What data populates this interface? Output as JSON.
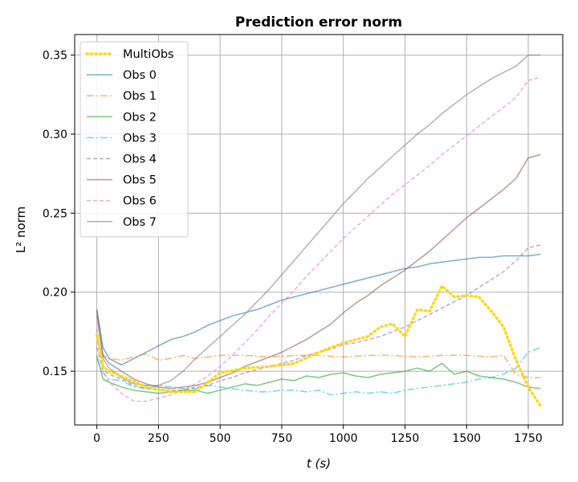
{
  "chart_data": {
    "type": "line",
    "title": "Prediction error norm",
    "xlabel": "t (s)",
    "ylabel": "L² norm",
    "xlim": [
      -90,
      1890
    ],
    "ylim": [
      0.116,
      0.363
    ],
    "xticks": [
      0,
      250,
      500,
      750,
      1000,
      1250,
      1500,
      1750
    ],
    "yticks": [
      0.15,
      0.2,
      0.25,
      0.3,
      0.35
    ],
    "ytick_labels": [
      "0.15",
      "0.20",
      "0.25",
      "0.30",
      "0.35"
    ],
    "grid": true,
    "legend_position": "top-left",
    "series": [
      {
        "name": "MultiObs",
        "color": "#ffd700",
        "dash": "1.5,4",
        "width": 3.2,
        "opacity": 1,
        "x": [
          0,
          25,
          50,
          100,
          200,
          300,
          400,
          500,
          600,
          700,
          800,
          900,
          1000,
          1050,
          1100,
          1150,
          1200,
          1250,
          1300,
          1350,
          1400,
          1450,
          1500,
          1550,
          1600,
          1650,
          1700,
          1750,
          1800
        ],
        "values": [
          0.173,
          0.153,
          0.15,
          0.147,
          0.14,
          0.137,
          0.137,
          0.149,
          0.152,
          0.153,
          0.155,
          0.162,
          0.168,
          0.17,
          0.172,
          0.178,
          0.18,
          0.172,
          0.189,
          0.188,
          0.204,
          0.197,
          0.198,
          0.197,
          0.188,
          0.178,
          0.157,
          0.14,
          0.128
        ]
      },
      {
        "name": "Obs 0",
        "color": "#1f77b4",
        "dash": "",
        "width": 1.5,
        "opacity": 0.6,
        "x": [
          0,
          25,
          50,
          100,
          150,
          200,
          250,
          300,
          350,
          400,
          450,
          500,
          550,
          600,
          650,
          700,
          750,
          800,
          850,
          900,
          950,
          1000,
          1050,
          1100,
          1150,
          1200,
          1250,
          1300,
          1350,
          1400,
          1450,
          1500,
          1550,
          1600,
          1650,
          1700,
          1750,
          1800
        ],
        "values": [
          0.189,
          0.165,
          0.158,
          0.154,
          0.158,
          0.162,
          0.166,
          0.17,
          0.172,
          0.175,
          0.179,
          0.182,
          0.185,
          0.187,
          0.189,
          0.192,
          0.195,
          0.197,
          0.199,
          0.201,
          0.203,
          0.205,
          0.207,
          0.209,
          0.211,
          0.213,
          0.215,
          0.216,
          0.218,
          0.219,
          0.22,
          0.221,
          0.222,
          0.222,
          0.223,
          0.223,
          0.223,
          0.224
        ]
      },
      {
        "name": "Obs 1",
        "color": "#ff7f0e",
        "dash": "9,3,2,3",
        "width": 1.5,
        "opacity": 0.6,
        "x": [
          0,
          25,
          50,
          100,
          150,
          200,
          250,
          300,
          350,
          400,
          450,
          500,
          600,
          700,
          800,
          900,
          1000,
          1100,
          1200,
          1300,
          1400,
          1500,
          1600,
          1650,
          1700,
          1750,
          1800
        ],
        "values": [
          0.17,
          0.16,
          0.158,
          0.157,
          0.159,
          0.161,
          0.157,
          0.158,
          0.16,
          0.158,
          0.159,
          0.16,
          0.16,
          0.159,
          0.16,
          0.16,
          0.159,
          0.16,
          0.16,
          0.159,
          0.16,
          0.16,
          0.159,
          0.16,
          0.148,
          0.146,
          0.146
        ]
      },
      {
        "name": "Obs 2",
        "color": "#2ca02c",
        "dash": "",
        "width": 1.5,
        "opacity": 0.6,
        "x": [
          0,
          25,
          50,
          100,
          150,
          200,
          250,
          300,
          350,
          400,
          450,
          500,
          550,
          600,
          650,
          700,
          750,
          800,
          850,
          900,
          950,
          1000,
          1050,
          1100,
          1150,
          1200,
          1250,
          1300,
          1350,
          1400,
          1450,
          1500,
          1550,
          1600,
          1650,
          1700,
          1750,
          1800
        ],
        "values": [
          0.16,
          0.145,
          0.143,
          0.14,
          0.138,
          0.137,
          0.136,
          0.137,
          0.138,
          0.138,
          0.136,
          0.138,
          0.14,
          0.142,
          0.141,
          0.143,
          0.145,
          0.144,
          0.147,
          0.146,
          0.148,
          0.149,
          0.147,
          0.146,
          0.148,
          0.149,
          0.15,
          0.152,
          0.15,
          0.155,
          0.148,
          0.15,
          0.147,
          0.146,
          0.145,
          0.143,
          0.14,
          0.139
        ]
      },
      {
        "name": "Obs 3",
        "color": "#17becf",
        "dash": "9,3,2,3",
        "width": 1.5,
        "opacity": 0.6,
        "x": [
          0,
          25,
          50,
          100,
          150,
          200,
          250,
          300,
          350,
          400,
          450,
          500,
          550,
          600,
          650,
          700,
          750,
          800,
          850,
          900,
          950,
          1000,
          1050,
          1100,
          1150,
          1200,
          1250,
          1300,
          1350,
          1400,
          1450,
          1500,
          1550,
          1600,
          1650,
          1700,
          1750,
          1800
        ],
        "values": [
          0.158,
          0.149,
          0.145,
          0.144,
          0.14,
          0.139,
          0.141,
          0.14,
          0.139,
          0.139,
          0.141,
          0.14,
          0.139,
          0.138,
          0.137,
          0.137,
          0.138,
          0.138,
          0.137,
          0.138,
          0.135,
          0.136,
          0.137,
          0.136,
          0.137,
          0.136,
          0.138,
          0.139,
          0.14,
          0.141,
          0.142,
          0.143,
          0.145,
          0.146,
          0.148,
          0.152,
          0.162,
          0.165
        ]
      },
      {
        "name": "Obs 4",
        "color": "#9467bd",
        "dash": "5,3",
        "width": 1.5,
        "opacity": 0.6,
        "x": [
          0,
          25,
          50,
          100,
          150,
          200,
          250,
          300,
          350,
          400,
          450,
          500,
          550,
          600,
          650,
          700,
          750,
          800,
          850,
          900,
          950,
          1000,
          1050,
          1100,
          1150,
          1200,
          1250,
          1300,
          1350,
          1400,
          1450,
          1500,
          1550,
          1600,
          1650,
          1700,
          1750,
          1800
        ],
        "values": [
          0.165,
          0.151,
          0.148,
          0.145,
          0.141,
          0.139,
          0.138,
          0.138,
          0.138,
          0.14,
          0.141,
          0.144,
          0.146,
          0.149,
          0.151,
          0.153,
          0.155,
          0.157,
          0.16,
          0.162,
          0.164,
          0.167,
          0.168,
          0.17,
          0.172,
          0.175,
          0.178,
          0.182,
          0.186,
          0.19,
          0.194,
          0.198,
          0.203,
          0.208,
          0.213,
          0.22,
          0.228,
          0.23
        ]
      },
      {
        "name": "Obs 5",
        "color": "#8c564b",
        "dash": "",
        "width": 1.5,
        "opacity": 0.6,
        "x": [
          0,
          25,
          50,
          100,
          150,
          200,
          250,
          300,
          350,
          400,
          450,
          500,
          550,
          600,
          650,
          700,
          750,
          800,
          850,
          900,
          950,
          1000,
          1050,
          1100,
          1150,
          1200,
          1250,
          1300,
          1350,
          1400,
          1450,
          1500,
          1550,
          1600,
          1650,
          1700,
          1750,
          1800
        ],
        "values": [
          0.189,
          0.16,
          0.155,
          0.15,
          0.145,
          0.142,
          0.14,
          0.139,
          0.14,
          0.141,
          0.143,
          0.146,
          0.149,
          0.153,
          0.156,
          0.159,
          0.162,
          0.166,
          0.17,
          0.175,
          0.18,
          0.187,
          0.193,
          0.198,
          0.204,
          0.209,
          0.214,
          0.22,
          0.226,
          0.233,
          0.24,
          0.247,
          0.253,
          0.259,
          0.265,
          0.272,
          0.285,
          0.287
        ]
      },
      {
        "name": "Obs 6",
        "color": "#e377c2",
        "dash": "5,3",
        "width": 1.5,
        "opacity": 0.6,
        "x": [
          0,
          25,
          50,
          100,
          150,
          200,
          250,
          300,
          350,
          400,
          450,
          500,
          550,
          600,
          650,
          700,
          750,
          800,
          850,
          900,
          950,
          1000,
          1050,
          1100,
          1150,
          1200,
          1250,
          1300,
          1350,
          1400,
          1450,
          1500,
          1550,
          1600,
          1650,
          1700,
          1750,
          1800
        ],
        "values": [
          0.177,
          0.15,
          0.143,
          0.136,
          0.131,
          0.131,
          0.133,
          0.135,
          0.138,
          0.142,
          0.147,
          0.153,
          0.16,
          0.168,
          0.176,
          0.185,
          0.193,
          0.201,
          0.21,
          0.218,
          0.226,
          0.234,
          0.241,
          0.248,
          0.255,
          0.262,
          0.268,
          0.274,
          0.28,
          0.287,
          0.293,
          0.299,
          0.305,
          0.311,
          0.317,
          0.323,
          0.334,
          0.336
        ]
      },
      {
        "name": "Obs 7",
        "color": "#7f7f7f",
        "dash": "",
        "width": 1.5,
        "opacity": 0.6,
        "x": [
          0,
          25,
          50,
          100,
          150,
          200,
          250,
          300,
          350,
          400,
          450,
          500,
          550,
          600,
          650,
          700,
          750,
          800,
          850,
          900,
          950,
          1000,
          1050,
          1100,
          1150,
          1200,
          1250,
          1300,
          1350,
          1400,
          1450,
          1500,
          1550,
          1600,
          1650,
          1700,
          1750,
          1800
        ],
        "values": [
          0.185,
          0.158,
          0.152,
          0.146,
          0.142,
          0.141,
          0.141,
          0.144,
          0.15,
          0.158,
          0.165,
          0.172,
          0.179,
          0.186,
          0.194,
          0.202,
          0.211,
          0.22,
          0.229,
          0.238,
          0.247,
          0.256,
          0.264,
          0.272,
          0.279,
          0.286,
          0.293,
          0.3,
          0.306,
          0.313,
          0.319,
          0.325,
          0.33,
          0.335,
          0.339,
          0.343,
          0.35,
          0.35
        ]
      }
    ]
  }
}
